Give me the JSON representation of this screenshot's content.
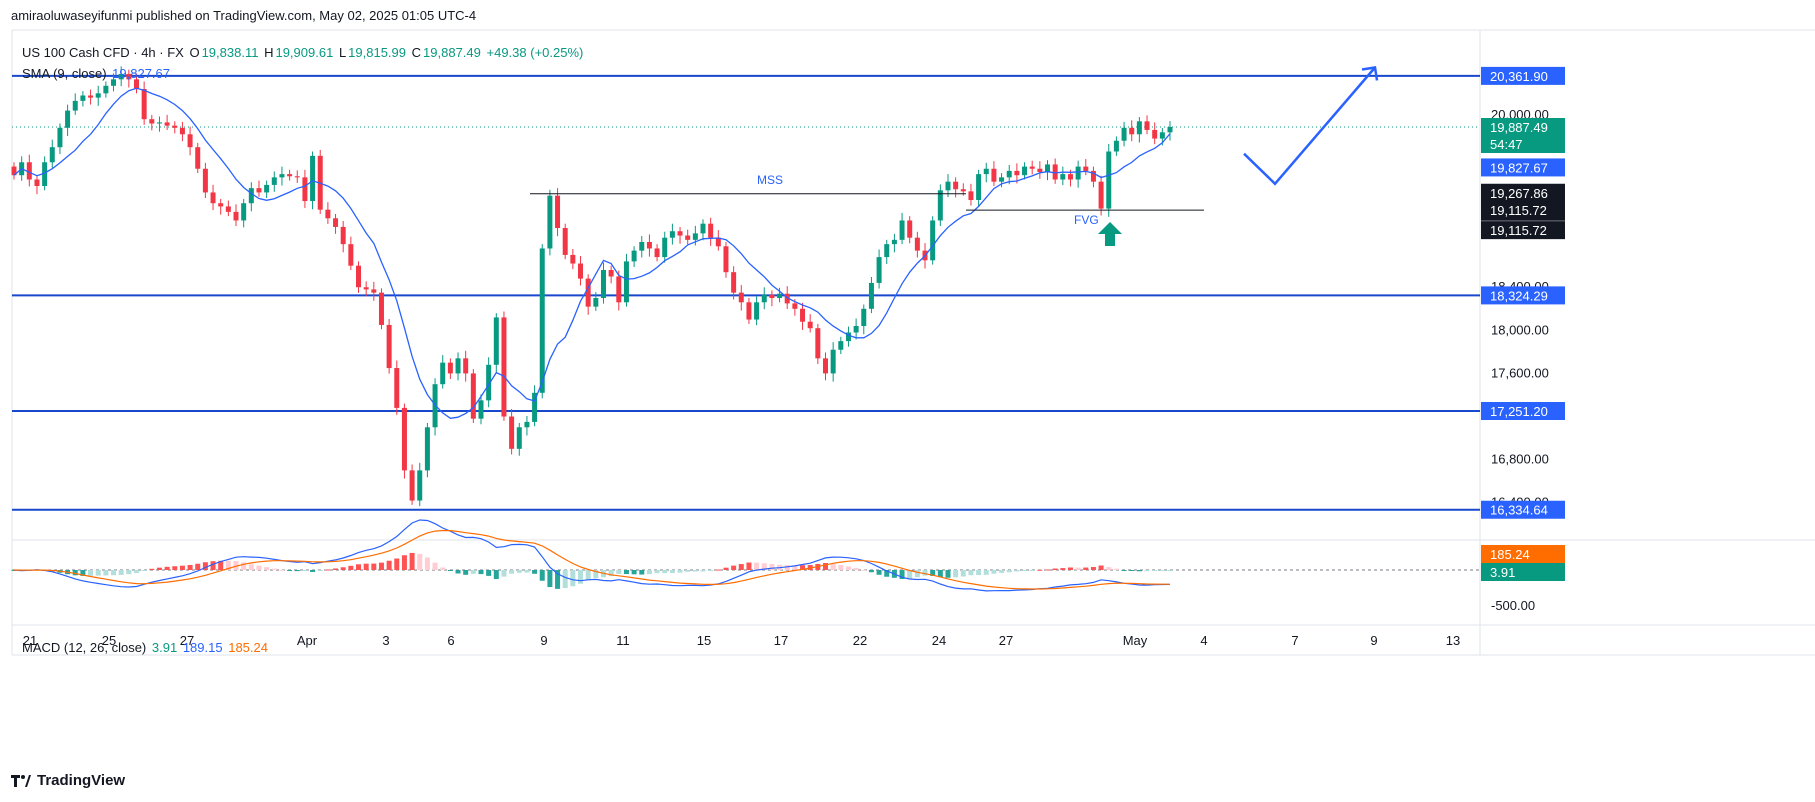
{
  "header": {
    "publisher": "amiraoluwaseyifunmi published on TradingView.com, May 02, 2025 01:05 UTC-4"
  },
  "legend": {
    "symbol": "US 100 Cash CFD · 4h · FX",
    "o_label": "O",
    "o_value": "19,838.11",
    "h_label": "H",
    "h_value": "19,909.61",
    "l_label": "L",
    "l_value": "19,815.99",
    "c_label": "C",
    "c_value": "19,887.49",
    "change": "+49.38 (+0.25%)",
    "sma_label": "SMA (9, close)",
    "sma_value": "19,827.67",
    "macd_label": "MACD (12, 26, close)",
    "macd_hist": "3.91",
    "macd_macd": "189.15",
    "macd_signal": "185.24"
  },
  "footer": {
    "brand": "TradingView"
  },
  "colors": {
    "up": "#089981",
    "down": "#f23645",
    "sma": "#2962ff",
    "level": "#1848cc",
    "signal": "#ff6d00"
  },
  "chart_data": [
    {
      "type": "candlestick",
      "title": "US 100 Cash CFD · 4h · FX",
      "x_tick_labels": [
        "21",
        "25",
        "27",
        "Apr",
        "3",
        "6",
        "9",
        "11",
        "15",
        "17",
        "22",
        "24",
        "27",
        "May",
        "4",
        "7",
        "9",
        "13"
      ],
      "y_tick_labels": [
        "20,000.00",
        "18,400.00",
        "18,000.00",
        "17,600.00",
        "16,800.00",
        "16,400.00"
      ],
      "ylim": [
        16260,
        20620
      ],
      "candles": [
        {
          "o": 19520,
          "c": 19440
        },
        {
          "o": 19440,
          "c": 19560
        },
        {
          "o": 19560,
          "c": 19400
        },
        {
          "o": 19400,
          "c": 19340
        },
        {
          "o": 19340,
          "c": 19560
        },
        {
          "o": 19560,
          "c": 19700
        },
        {
          "o": 19700,
          "c": 19880
        },
        {
          "o": 19880,
          "c": 20040
        },
        {
          "o": 20040,
          "c": 20130
        },
        {
          "o": 20130,
          "c": 20180
        },
        {
          "o": 20180,
          "c": 20160
        },
        {
          "o": 20160,
          "c": 20200
        },
        {
          "o": 20200,
          "c": 20270
        },
        {
          "o": 20270,
          "c": 20330
        },
        {
          "o": 20330,
          "c": 20380
        },
        {
          "o": 20380,
          "c": 20330
        },
        {
          "o": 20330,
          "c": 20240
        },
        {
          "o": 20240,
          "c": 19960
        },
        {
          "o": 19960,
          "c": 19920
        },
        {
          "o": 19920,
          "c": 19930
        },
        {
          "o": 19930,
          "c": 19900
        },
        {
          "o": 19900,
          "c": 19880
        },
        {
          "o": 19880,
          "c": 19820
        },
        {
          "o": 19820,
          "c": 19700
        },
        {
          "o": 19700,
          "c": 19500
        },
        {
          "o": 19500,
          "c": 19280
        },
        {
          "o": 19280,
          "c": 19180
        },
        {
          "o": 19180,
          "c": 19150
        },
        {
          "o": 19150,
          "c": 19100
        },
        {
          "o": 19100,
          "c": 19020
        },
        {
          "o": 19020,
          "c": 19180
        },
        {
          "o": 19180,
          "c": 19320
        },
        {
          "o": 19320,
          "c": 19280
        },
        {
          "o": 19280,
          "c": 19350
        },
        {
          "o": 19350,
          "c": 19420
        },
        {
          "o": 19420,
          "c": 19450
        },
        {
          "o": 19450,
          "c": 19430
        },
        {
          "o": 19430,
          "c": 19420
        },
        {
          "o": 19420,
          "c": 19200
        },
        {
          "o": 19200,
          "c": 19620
        },
        {
          "o": 19620,
          "c": 19120
        },
        {
          "o": 19120,
          "c": 19040
        },
        {
          "o": 19040,
          "c": 18960
        },
        {
          "o": 18960,
          "c": 18800
        },
        {
          "o": 18800,
          "c": 18600
        },
        {
          "o": 18600,
          "c": 18400
        },
        {
          "o": 18400,
          "c": 18380
        },
        {
          "o": 18380,
          "c": 18350
        },
        {
          "o": 18350,
          "c": 18050
        },
        {
          "o": 18050,
          "c": 17650
        },
        {
          "o": 17650,
          "c": 17280
        },
        {
          "o": 17280,
          "c": 16700
        },
        {
          "o": 16700,
          "c": 16420
        },
        {
          "o": 16420,
          "c": 16700
        },
        {
          "o": 16700,
          "c": 17100
        },
        {
          "o": 17100,
          "c": 17500
        },
        {
          "o": 17500,
          "c": 17700
        },
        {
          "o": 17700,
          "c": 17600
        },
        {
          "o": 17600,
          "c": 17740
        },
        {
          "o": 17740,
          "c": 17600
        },
        {
          "o": 17600,
          "c": 17180
        },
        {
          "o": 17180,
          "c": 17350
        },
        {
          "o": 17350,
          "c": 17680
        },
        {
          "o": 17680,
          "c": 18120
        },
        {
          "o": 18120,
          "c": 17200
        },
        {
          "o": 17200,
          "c": 16900
        },
        {
          "o": 16900,
          "c": 17100
        },
        {
          "o": 17100,
          "c": 17150
        },
        {
          "o": 17150,
          "c": 17420
        },
        {
          "o": 17420,
          "c": 18760
        },
        {
          "o": 18760,
          "c": 19250
        },
        {
          "o": 19250,
          "c": 18950
        },
        {
          "o": 18950,
          "c": 18700
        },
        {
          "o": 18700,
          "c": 18620
        },
        {
          "o": 18620,
          "c": 18480
        },
        {
          "o": 18480,
          "c": 18220
        },
        {
          "o": 18220,
          "c": 18300
        },
        {
          "o": 18300,
          "c": 18560
        },
        {
          "o": 18560,
          "c": 18500
        },
        {
          "o": 18500,
          "c": 18260
        },
        {
          "o": 18260,
          "c": 18640
        },
        {
          "o": 18640,
          "c": 18740
        },
        {
          "o": 18740,
          "c": 18820
        },
        {
          "o": 18820,
          "c": 18760
        },
        {
          "o": 18760,
          "c": 18680
        },
        {
          "o": 18680,
          "c": 18860
        },
        {
          "o": 18860,
          "c": 18920
        },
        {
          "o": 18920,
          "c": 18880
        },
        {
          "o": 18880,
          "c": 18840
        },
        {
          "o": 18840,
          "c": 18900
        },
        {
          "o": 18900,
          "c": 18990
        },
        {
          "o": 18990,
          "c": 18860
        },
        {
          "o": 18860,
          "c": 18780
        },
        {
          "o": 18780,
          "c": 18540
        },
        {
          "o": 18540,
          "c": 18350
        },
        {
          "o": 18350,
          "c": 18260
        },
        {
          "o": 18260,
          "c": 18100
        },
        {
          "o": 18100,
          "c": 18260
        },
        {
          "o": 18260,
          "c": 18330
        },
        {
          "o": 18330,
          "c": 18300
        },
        {
          "o": 18300,
          "c": 18340
        },
        {
          "o": 18340,
          "c": 18250
        },
        {
          "o": 18250,
          "c": 18200
        },
        {
          "o": 18200,
          "c": 18080
        },
        {
          "o": 18080,
          "c": 18020
        },
        {
          "o": 18020,
          "c": 17740
        },
        {
          "o": 17740,
          "c": 17600
        },
        {
          "o": 17600,
          "c": 17820
        },
        {
          "o": 17820,
          "c": 17900
        },
        {
          "o": 17900,
          "c": 17980
        },
        {
          "o": 17980,
          "c": 18040
        },
        {
          "o": 18040,
          "c": 18200
        },
        {
          "o": 18200,
          "c": 18440
        },
        {
          "o": 18440,
          "c": 18680
        },
        {
          "o": 18680,
          "c": 18800
        },
        {
          "o": 18800,
          "c": 18840
        },
        {
          "o": 18840,
          "c": 19020
        },
        {
          "o": 19020,
          "c": 18860
        },
        {
          "o": 18860,
          "c": 18740
        },
        {
          "o": 18740,
          "c": 18650
        },
        {
          "o": 18650,
          "c": 19020
        },
        {
          "o": 19020,
          "c": 19300
        },
        {
          "o": 19300,
          "c": 19380
        },
        {
          "o": 19380,
          "c": 19310
        },
        {
          "o": 19310,
          "c": 19290
        },
        {
          "o": 19290,
          "c": 19210
        },
        {
          "o": 19210,
          "c": 19450
        },
        {
          "o": 19450,
          "c": 19500
        },
        {
          "o": 19500,
          "c": 19380
        },
        {
          "o": 19380,
          "c": 19420
        },
        {
          "o": 19420,
          "c": 19480
        },
        {
          "o": 19480,
          "c": 19440
        },
        {
          "o": 19440,
          "c": 19520
        },
        {
          "o": 19520,
          "c": 19500
        },
        {
          "o": 19500,
          "c": 19470
        },
        {
          "o": 19470,
          "c": 19540
        },
        {
          "o": 19540,
          "c": 19400
        },
        {
          "o": 19400,
          "c": 19450
        },
        {
          "o": 19450,
          "c": 19400
        },
        {
          "o": 19400,
          "c": 19520
        },
        {
          "o": 19520,
          "c": 19480
        },
        {
          "o": 19480,
          "c": 19380
        },
        {
          "o": 19380,
          "c": 19130
        },
        {
          "o": 19130,
          "c": 19660
        },
        {
          "o": 19660,
          "c": 19760
        },
        {
          "o": 19760,
          "c": 19880
        },
        {
          "o": 19880,
          "c": 19820
        },
        {
          "o": 19820,
          "c": 19940
        },
        {
          "o": 19940,
          "c": 19860
        },
        {
          "o": 19860,
          "c": 19780
        },
        {
          "o": 19780,
          "c": 19838
        },
        {
          "o": 19838,
          "c": 19887.49
        }
      ],
      "sma": {
        "name": "SMA (9, close)",
        "last": 19827.67
      },
      "horizontal_levels": [
        20361.9,
        18324.29,
        17251.2,
        16334.64
      ],
      "price_labels": [
        "20,361.90",
        "19,887.49",
        "54:47",
        "19,827.67",
        "19,267.86",
        "19,267.86",
        "19,115.72",
        "19,115.72",
        "18,324.29",
        "17,251.20",
        "16,334.64"
      ],
      "annotations": [
        "MSS",
        "FVG"
      ],
      "mss_level": 19267.86,
      "fvg_level": 19115.72,
      "projection": [
        {
          "x": 1244,
          "y": 19640
        },
        {
          "x": 1275,
          "y": 19360
        },
        {
          "x": 1375,
          "y": 20440
        }
      ]
    },
    {
      "type": "macd",
      "title": "MACD (12, 26, close)",
      "y_tick_labels": [
        "-500.00"
      ],
      "ylim": [
        -1000,
        500
      ],
      "values": {
        "histogram": 3.91,
        "macd": 189.15,
        "signal": 185.24
      },
      "price_labels": [
        "185.24",
        "3.91"
      ]
    }
  ]
}
